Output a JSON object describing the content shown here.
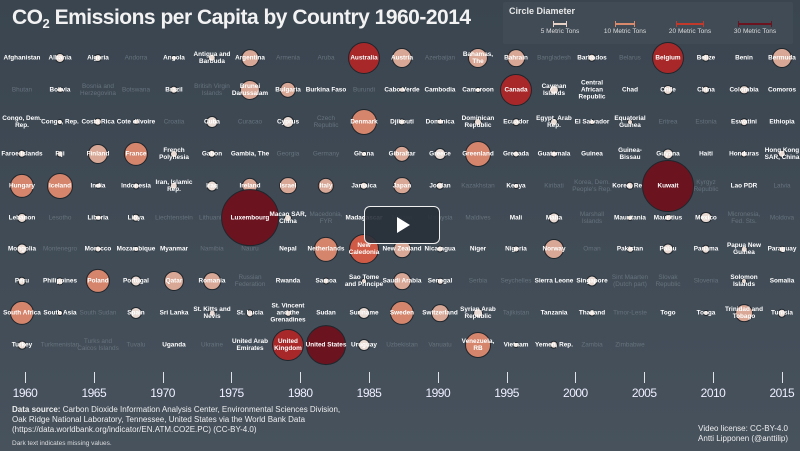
{
  "title": {
    "prefix": "CO",
    "subscript": "2",
    "rest": " Emissions per Capita by Country 1960-2014"
  },
  "legend": {
    "title": "Circle Diameter",
    "items": [
      {
        "label": "5 Metric Tons",
        "value": 5,
        "color": "#e6cfc4"
      },
      {
        "label": "10 Metric Tons",
        "value": 10,
        "color": "#d98a6c"
      },
      {
        "label": "20 Metric Tons",
        "value": 20,
        "color": "#c0392b"
      },
      {
        "label": "30 Metric Tons",
        "value": 30,
        "color": "#6b1420"
      }
    ]
  },
  "chart_data": {
    "type": "bubble-grid",
    "title": "CO2 Emissions per Capita by Country 1960-2014",
    "unit": "Metric Tons",
    "timeline_ticks": [
      "1960",
      "1965",
      "1970",
      "1975",
      "1980",
      "1985",
      "1990",
      "1995",
      "2000",
      "2005",
      "2010",
      "2015"
    ],
    "countries": [
      {
        "name": "Afghanistan",
        "value": 0.1
      },
      {
        "name": "Albania",
        "value": 1.6
      },
      {
        "name": "Algeria",
        "value": 0.9
      },
      {
        "name": "Andorra",
        "missing": true
      },
      {
        "name": "Angola",
        "value": 0.4
      },
      {
        "name": "Antigua and Barbuda",
        "value": 1
      },
      {
        "name": "Argentina",
        "value": 6
      },
      {
        "name": "Armenia",
        "missing": true
      },
      {
        "name": "Aruba",
        "missing": true
      },
      {
        "name": "Australia",
        "value": 22
      },
      {
        "name": "Austria",
        "value": 8
      },
      {
        "name": "Azerbaijan",
        "missing": true
      },
      {
        "name": "Bahamas, The",
        "value": 8
      },
      {
        "name": "Bahrain",
        "value": 6
      },
      {
        "name": "Bangladesh",
        "missing": true
      },
      {
        "name": "Barbados",
        "value": 1
      },
      {
        "name": "Belarus",
        "missing": true
      },
      {
        "name": "Belgium",
        "value": 22
      },
      {
        "name": "Belize",
        "value": 1
      },
      {
        "name": "Benin",
        "value": 0.1
      },
      {
        "name": "Bermuda",
        "value": 8
      },
      {
        "name": "Bhutan",
        "missing": true
      },
      {
        "name": "Bolivia",
        "value": 0.5
      },
      {
        "name": "Bosnia and Herzegovina",
        "missing": true
      },
      {
        "name": "Botswana",
        "missing": true
      },
      {
        "name": "Brazil",
        "value": 1
      },
      {
        "name": "British Virgin Islands",
        "missing": true
      },
      {
        "name": "Brunei Darussalam",
        "value": 8
      },
      {
        "name": "Bulgaria",
        "value": 5
      },
      {
        "name": "Burkina Faso",
        "value": 0.1
      },
      {
        "name": "Burundi",
        "missing": true
      },
      {
        "name": "Cabo Verde",
        "value": 0.5
      },
      {
        "name": "Cambodia",
        "value": 0.1
      },
      {
        "name": "Cameroon",
        "value": 0.3
      },
      {
        "name": "Canada",
        "value": 22
      },
      {
        "name": "Cayman Islands",
        "value": 1.6
      },
      {
        "name": "Central African Republic",
        "value": 0.1
      },
      {
        "name": "Chad",
        "value": 0.1
      },
      {
        "name": "Chile",
        "value": 1.6
      },
      {
        "name": "China",
        "value": 1
      },
      {
        "name": "Colombia",
        "value": 1.4
      },
      {
        "name": "Comoros",
        "value": 0.2
      },
      {
        "name": "Congo, Dem. Rep.",
        "value": 0.1
      },
      {
        "name": "Congo, Rep.",
        "value": 0.4
      },
      {
        "name": "Costa Rica",
        "value": 1
      },
      {
        "name": "Cote d'Ivoire",
        "value": 0.5
      },
      {
        "name": "Croatia",
        "missing": true
      },
      {
        "name": "Cuba",
        "value": 2.4
      },
      {
        "name": "Curacao",
        "missing": true
      },
      {
        "name": "Cyprus",
        "value": 2.4
      },
      {
        "name": "Czech Republic",
        "missing": true
      },
      {
        "name": "Denmark",
        "value": 14
      },
      {
        "name": "Djibouti",
        "value": 0.7
      },
      {
        "name": "Dominica",
        "value": 0.5
      },
      {
        "name": "Dominican Republic",
        "value": 0.9
      },
      {
        "name": "Ecuador",
        "value": 0.8
      },
      {
        "name": "Egypt, Arab Rep.",
        "value": 0.9
      },
      {
        "name": "El Salvador",
        "value": 0.4
      },
      {
        "name": "Equatorial Guinea",
        "value": 0.3
      },
      {
        "name": "Eritrea",
        "missing": true
      },
      {
        "name": "Estonia",
        "missing": true
      },
      {
        "name": "Eswatini",
        "value": 0.8
      },
      {
        "name": "Ethiopia",
        "value": 0.1
      },
      {
        "name": "Faroe Islands",
        "value": 1
      },
      {
        "name": "Fiji",
        "value": 0.6
      },
      {
        "name": "Finland",
        "value": 8
      },
      {
        "name": "France",
        "value": 12
      },
      {
        "name": "French Polynesia",
        "value": 0.9
      },
      {
        "name": "Gabon",
        "value": 1
      },
      {
        "name": "Gambia, The",
        "value": 0.2
      },
      {
        "name": "Georgia",
        "missing": true
      },
      {
        "name": "Germany",
        "missing": true
      },
      {
        "name": "Ghana",
        "value": 0.3
      },
      {
        "name": "Gibraltar",
        "value": 5
      },
      {
        "name": "Greece",
        "value": 2.4
      },
      {
        "name": "Greenland",
        "value": 14
      },
      {
        "name": "Grenada",
        "value": 0.6
      },
      {
        "name": "Guatemala",
        "value": 0.6
      },
      {
        "name": "Guinea",
        "value": 0.2
      },
      {
        "name": "Guinea-Bissau",
        "value": 0.2
      },
      {
        "name": "Guyana",
        "value": 2
      },
      {
        "name": "Haiti",
        "value": 0.1
      },
      {
        "name": "Honduras",
        "value": 0.6
      },
      {
        "name": "Hong Kong SAR, China",
        "value": 1
      },
      {
        "name": "Hungary",
        "value": 12
      },
      {
        "name": "Iceland",
        "value": 14
      },
      {
        "name": "India",
        "value": 0.5
      },
      {
        "name": "Indonesia",
        "value": 0.6
      },
      {
        "name": "Iran, Islamic Rep.",
        "value": 1
      },
      {
        "name": "Iraq",
        "value": 2
      },
      {
        "name": "Ireland",
        "value": 5
      },
      {
        "name": "Israel",
        "value": 6
      },
      {
        "name": "Italy",
        "value": 5
      },
      {
        "name": "Jamaica",
        "value": 1
      },
      {
        "name": "Japan",
        "value": 6
      },
      {
        "name": "Jordan",
        "value": 1
      },
      {
        "name": "Kazakhstan",
        "missing": true
      },
      {
        "name": "Kenya",
        "value": 0.4
      },
      {
        "name": "Kiribati",
        "missing": true
      },
      {
        "name": "Korea, Dem. People's Rep.",
        "missing": true
      },
      {
        "name": "Korea, Rep.",
        "value": 1
      },
      {
        "name": "Kuwait",
        "value": 61
      },
      {
        "name": "Kyrgyz Republic",
        "missing": true
      },
      {
        "name": "Lao PDR",
        "value": 0.1
      },
      {
        "name": "Latvia",
        "missing": true
      },
      {
        "name": "Lebanon",
        "value": 1.6
      },
      {
        "name": "Lesotho",
        "missing": true
      },
      {
        "name": "Liberia",
        "value": 0.5
      },
      {
        "name": "Libya",
        "value": 1
      },
      {
        "name": "Liechtenstein",
        "missing": true
      },
      {
        "name": "Lithuania",
        "missing": true
      },
      {
        "name": "Luxembourg",
        "value": 76
      },
      {
        "name": "Macao SAR, China",
        "value": 0.9
      },
      {
        "name": "Macedonia, FYR",
        "missing": true
      },
      {
        "name": "Madagascar",
        "value": 0.2
      },
      {
        "name": "Malawi",
        "missing": true
      },
      {
        "name": "Malaysia",
        "missing": true
      },
      {
        "name": "Maldives",
        "missing": true
      },
      {
        "name": "Mali",
        "value": 0.1
      },
      {
        "name": "Malta",
        "value": 2
      },
      {
        "name": "Marshall Islands",
        "missing": true
      },
      {
        "name": "Mauritania",
        "value": 0.4
      },
      {
        "name": "Mauritius",
        "value": 0.8
      },
      {
        "name": "Mexico",
        "value": 2.4
      },
      {
        "name": "Micronesia, Fed. Sts.",
        "missing": true
      },
      {
        "name": "Moldova",
        "missing": true
      },
      {
        "name": "Mongolia",
        "value": 2
      },
      {
        "name": "Montenegro",
        "missing": true
      },
      {
        "name": "Morocco",
        "value": 0.6
      },
      {
        "name": "Mozambique",
        "value": 0.3
      },
      {
        "name": "Myanmar",
        "value": 0.1
      },
      {
        "name": "Namibia",
        "missing": true
      },
      {
        "name": "Nauru",
        "missing": true
      },
      {
        "name": "Nepal",
        "value": 0.05
      },
      {
        "name": "Netherlands",
        "value": 12
      },
      {
        "name": "New Caledonia",
        "value": 19
      },
      {
        "name": "New Zealand",
        "value": 6
      },
      {
        "name": "Nicaragua",
        "value": 0.6
      },
      {
        "name": "Niger",
        "value": 0.1
      },
      {
        "name": "Nigeria",
        "value": 0.6
      },
      {
        "name": "Norway",
        "value": 8
      },
      {
        "name": "Oman",
        "missing": true
      },
      {
        "name": "Pakistan",
        "value": 0.5
      },
      {
        "name": "Palau",
        "value": 2
      },
      {
        "name": "Panama",
        "value": 1
      },
      {
        "name": "Papua New Guinea",
        "value": 0.5
      },
      {
        "name": "Paraguay",
        "value": 0.5
      },
      {
        "name": "Peru",
        "value": 1
      },
      {
        "name": "Philippines",
        "value": 0.7
      },
      {
        "name": "Poland",
        "value": 12
      },
      {
        "name": "Portugal",
        "value": 2
      },
      {
        "name": "Qatar",
        "value": 8
      },
      {
        "name": "Romania",
        "value": 6
      },
      {
        "name": "Russian Federation",
        "missing": true
      },
      {
        "name": "Rwanda",
        "value": 0.05
      },
      {
        "name": "Samoa",
        "value": 0.6
      },
      {
        "name": "Sao Tome and Principe",
        "value": 0.3
      },
      {
        "name": "Saudi Arabia",
        "value": 6
      },
      {
        "name": "Senegal",
        "value": 0.5
      },
      {
        "name": "Serbia",
        "missing": true
      },
      {
        "name": "Seychelles",
        "missing": true
      },
      {
        "name": "Sierra Leone",
        "value": 0.2
      },
      {
        "name": "Singapore",
        "value": 2
      },
      {
        "name": "Sint Maarten (Dutch part)",
        "missing": true
      },
      {
        "name": "Slovak Republic",
        "missing": true
      },
      {
        "name": "Slovenia",
        "missing": true
      },
      {
        "name": "Solomon Islands",
        "value": 0.4
      },
      {
        "name": "Somalia",
        "value": 0.1
      },
      {
        "name": "South Africa",
        "value": 12
      },
      {
        "name": "South Asia",
        "value": 0.4
      },
      {
        "name": "South Sudan",
        "missing": true
      },
      {
        "name": "Spain",
        "value": 2.5
      },
      {
        "name": "Sri Lanka",
        "value": 0.2
      },
      {
        "name": "St. Kitts and Nevis",
        "value": 0.5
      },
      {
        "name": "St. Lucia",
        "value": 0.7
      },
      {
        "name": "St. Vincent and the Grenadines",
        "value": 0.5
      },
      {
        "name": "Sudan",
        "value": 0.2
      },
      {
        "name": "Suriname",
        "value": 2.5
      },
      {
        "name": "Sweden",
        "value": 12
      },
      {
        "name": "Switzerland",
        "value": 6
      },
      {
        "name": "Syrian Arab Republic",
        "value": 1.5
      },
      {
        "name": "Tajikistan",
        "missing": true
      },
      {
        "name": "Tanzania",
        "value": 0.1
      },
      {
        "name": "Thailand",
        "value": 0.6
      },
      {
        "name": "Timor-Leste",
        "missing": true
      },
      {
        "name": "Togo",
        "value": 0.2
      },
      {
        "name": "Tonga",
        "value": 0.4
      },
      {
        "name": "Trinidad and Tobago",
        "value": 6
      },
      {
        "name": "Tunisia",
        "value": 1
      },
      {
        "name": "Turkey",
        "value": 1.1
      },
      {
        "name": "Turkmenistan",
        "missing": true
      },
      {
        "name": "Turks and Caicos Islands",
        "missing": true
      },
      {
        "name": "Tuvalu",
        "missing": true
      },
      {
        "name": "Uganda",
        "value": 0.1
      },
      {
        "name": "Ukraine",
        "missing": true
      },
      {
        "name": "United Arab Emirates",
        "value": 0.1
      },
      {
        "name": "United Kingdom",
        "value": 22
      },
      {
        "name": "United States",
        "value": 35
      },
      {
        "name": "Uruguay",
        "value": 2.4
      },
      {
        "name": "Uzbekistan",
        "missing": true
      },
      {
        "name": "Vanuatu",
        "missing": true
      },
      {
        "name": "Venezuela, RB",
        "value": 14
      },
      {
        "name": "Vietnam",
        "value": 0.3
      },
      {
        "name": "Yemen, Rep.",
        "value": 1
      },
      {
        "name": "Zambia",
        "missing": true
      },
      {
        "name": "Zimbabwe",
        "missing": true
      }
    ]
  },
  "footer": {
    "source_label": "Data source:",
    "source_line1": " Carbon Dioxide Information Analysis Center, Environmental Sciences Division,",
    "source_line2": "Oak Ridge National Laboratory, Tennessee, United States via the World Bank Data",
    "source_line3": "(https://data.worldbank.org/indicator/EN.ATM.CO2E.PC) (CC-BY-4.0)",
    "note": "Dark text indicates missing values.",
    "license": "Video license: CC-BY-4.0",
    "author": "Antti Lipponen (@anttilip)"
  },
  "player": {
    "play_icon": "play-icon"
  }
}
